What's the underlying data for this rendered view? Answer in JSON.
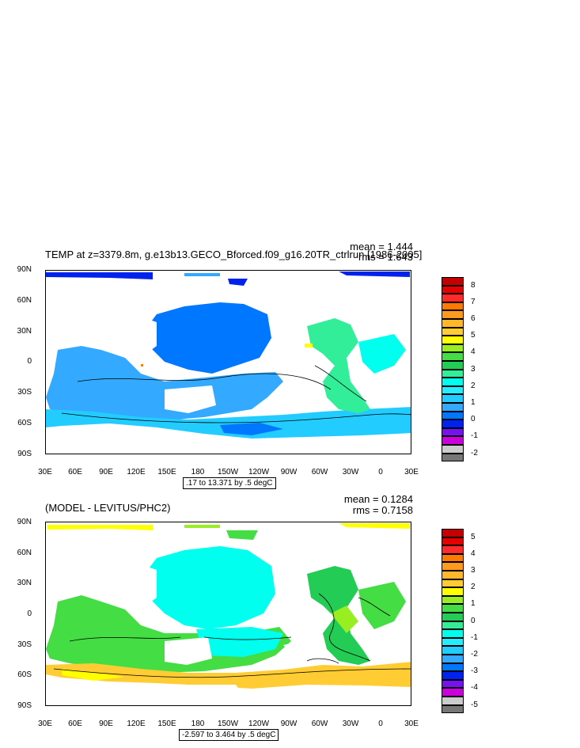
{
  "panels": [
    {
      "title": "TEMP at z=3379.8m, g.e13b13.GECO_Bforced.f09_g16.20TR_ctrlrun [1986-2005]",
      "mean_label": "mean = 1.444",
      "rms_label": "rms = 1.643",
      "contour_info": ".17 to 13.371 by .5 degC",
      "lat_labels": [
        "90N",
        "60N",
        "30N",
        "0",
        "30S",
        "60S",
        "90S"
      ],
      "lon_labels": [
        "30E",
        "60E",
        "90E",
        "120E",
        "150E",
        "180",
        "150W",
        "120W",
        "90W",
        "60W",
        "30W",
        "0",
        "30E"
      ],
      "colorbar": {
        "labels": [
          "8",
          "7",
          "6",
          "5",
          "4",
          "3",
          "2",
          "1",
          "0",
          "-1",
          "-2"
        ],
        "colors": [
          "#c40000",
          "#e60000",
          "#ff2a2a",
          "#ff7a00",
          "#ff9a1f",
          "#ffb82a",
          "#ffcc33",
          "#ffff00",
          "#99ee22",
          "#44dd44",
          "#22cc55",
          "#33ee99",
          "#00ffee",
          "#22eeff",
          "#22ccff",
          "#33aaff",
          "#0077ff",
          "#0022ee",
          "#7711ee",
          "#cc00dd",
          "#cccccc",
          "#777777"
        ]
      },
      "map_colors": {
        "ocean_main": "#33aaff",
        "ocean_deep": "#0077ff",
        "ocean_light": "#22ccff",
        "ocean_cyan": "#00ffee",
        "arctic": "#0022ee",
        "atlantic": "#33ee99"
      }
    },
    {
      "title": "(MODEL - LEVITUS/PHC2)",
      "mean_label": "mean = 0.1284",
      "rms_label": "rms = 0.7158",
      "contour_info": "-2.597 to 3.464 by .5 degC",
      "lat_labels": [
        "90N",
        "60N",
        "30N",
        "0",
        "30S",
        "60S",
        "90S"
      ],
      "lon_labels": [
        "30E",
        "60E",
        "90E",
        "120E",
        "150E",
        "180",
        "150W",
        "120W",
        "90W",
        "60W",
        "30W",
        "0",
        "30E"
      ],
      "colorbar": {
        "labels": [
          "5",
          "4",
          "3",
          "2",
          "1",
          "0",
          "-1",
          "-2",
          "-3",
          "-4",
          "-5"
        ],
        "colors": [
          "#c40000",
          "#e60000",
          "#ff2a2a",
          "#ff7a00",
          "#ff9a1f",
          "#ffb82a",
          "#ffcc33",
          "#ffff00",
          "#99ee22",
          "#44dd44",
          "#22cc55",
          "#33ee99",
          "#00ffee",
          "#22eeff",
          "#22ccff",
          "#33aaff",
          "#0077ff",
          "#0022ee",
          "#7711ee",
          "#cc00dd",
          "#cccccc",
          "#777777"
        ]
      },
      "map_colors": {
        "ocean_main": "#00ffee",
        "ocean_green": "#44dd44",
        "ocean_lgreen": "#99ee22",
        "southern": "#ffcc33",
        "arctic": "#ffff00",
        "atlantic": "#22cc55"
      }
    }
  ]
}
